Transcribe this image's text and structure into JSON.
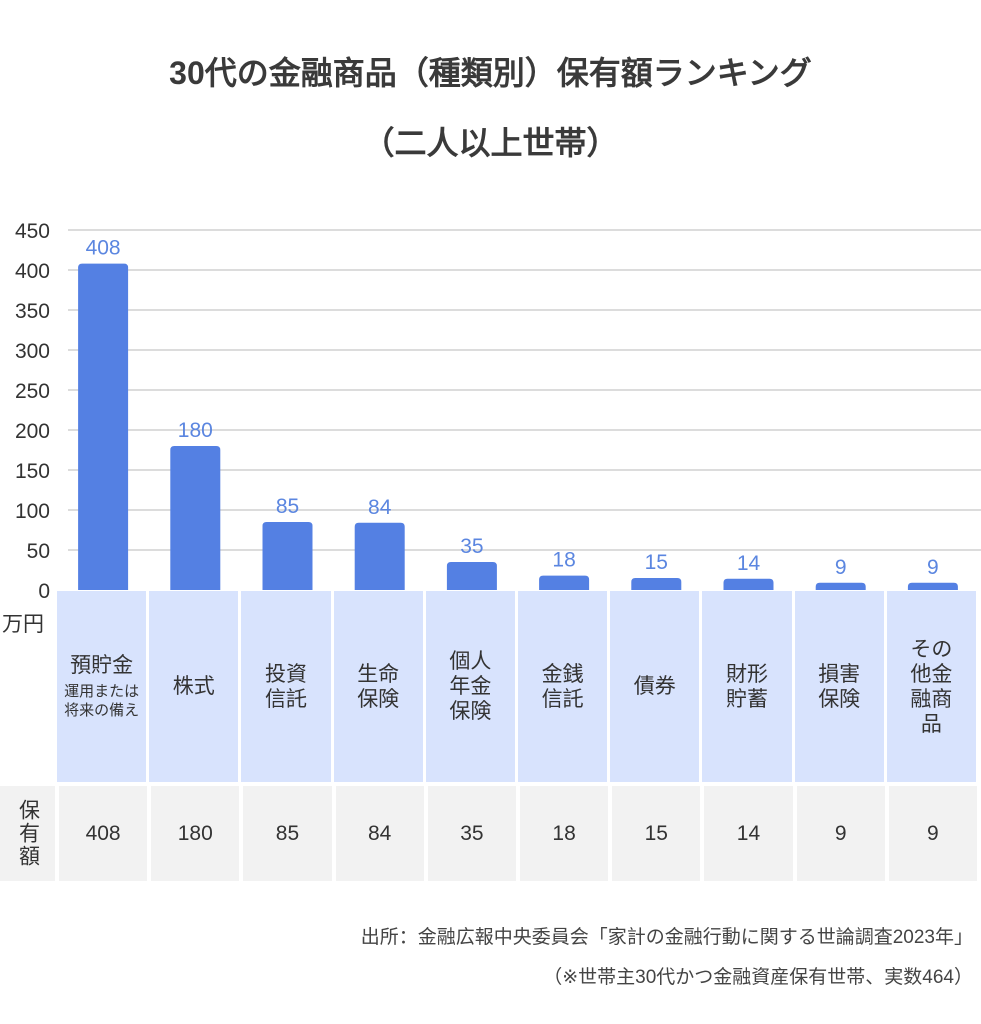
{
  "title_line1": "30代の金融商品（種類別）保有額ランキング",
  "title_line2": "（二人以上世帯）",
  "unit_label": "万円",
  "value_row_header": "保有額",
  "source_line1": "出所：金融広報中央委員会「家計の金融行動に関する世論調査2023年」",
  "source_line2": "（※世帯主30代かつ金融資産保有世帯、実数464）",
  "colors": {
    "bar": "#5480e3",
    "label_cell": "#d8e3fd",
    "value_cell": "#f2f2f2",
    "value_label": "#5b86e0"
  },
  "chart_data": {
    "type": "bar",
    "title": "30代の金融商品（種類別）保有額ランキング（二人以上世帯）",
    "ylabel": "万円",
    "ylim": [
      0,
      450
    ],
    "yticks": [
      "0",
      "50",
      "100",
      "150",
      "200",
      "250",
      "300",
      "350",
      "400",
      "450"
    ],
    "grid": true,
    "categories": [
      {
        "label": "預貯金",
        "sub": "運用または将来の備え"
      },
      {
        "label": "株式"
      },
      {
        "label": "投資信託"
      },
      {
        "label": "生命保険"
      },
      {
        "label": "個人年金保険"
      },
      {
        "label": "金銭信託"
      },
      {
        "label": "債券"
      },
      {
        "label": "財形貯蓄"
      },
      {
        "label": "損害保険"
      },
      {
        "label": "その他金融商品"
      }
    ],
    "values": [
      408,
      180,
      85,
      84,
      35,
      18,
      15,
      14,
      9,
      9
    ]
  }
}
